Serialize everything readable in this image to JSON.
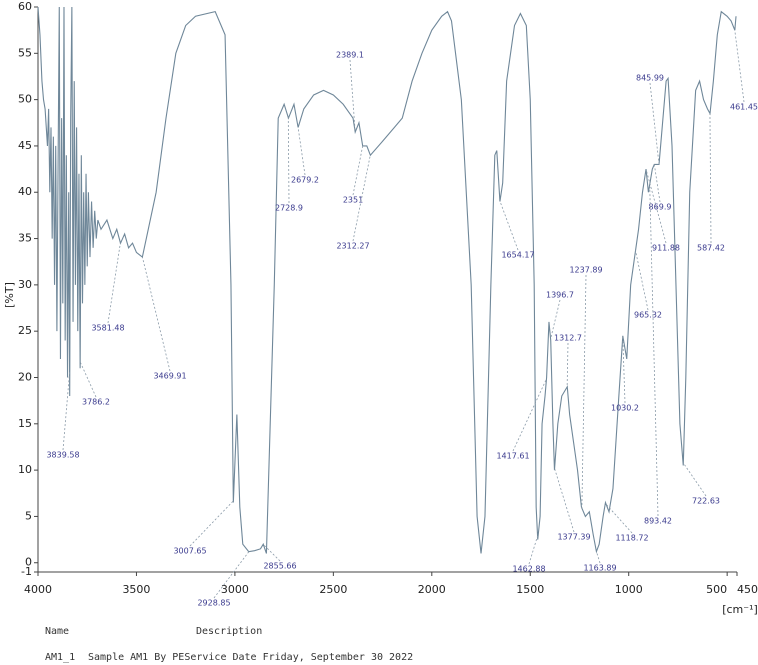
{
  "chart_data": {
    "type": "line",
    "color": "#6f8799",
    "y_label": "[%T]",
    "x_label": "[cm⁻¹]",
    "xlim": [
      4000,
      450
    ],
    "ylim": [
      -1,
      60
    ],
    "xticks": [
      4000,
      3500,
      3000,
      2500,
      2000,
      1500,
      1000,
      500,
      450
    ],
    "yticks": [
      -1,
      0,
      5,
      10,
      15,
      20,
      25,
      30,
      35,
      40,
      45,
      50,
      55,
      60
    ],
    "x": [
      4000,
      3990,
      3980,
      3972,
      3964,
      3958,
      3952,
      3946,
      3940,
      3934,
      3928,
      3922,
      3916,
      3910,
      3904,
      3898,
      3892,
      3886,
      3880,
      3874,
      3868,
      3862,
      3856,
      3850,
      3844,
      3839,
      3834,
      3828,
      3822,
      3816,
      3810,
      3804,
      3798,
      3792,
      3786,
      3780,
      3774,
      3768,
      3762,
      3756,
      3750,
      3744,
      3736,
      3728,
      3720,
      3712,
      3704,
      3696,
      3680,
      3650,
      3620,
      3600,
      3581,
      3560,
      3540,
      3520,
      3500,
      3470,
      3400,
      3350,
      3300,
      3250,
      3200,
      3100,
      3050,
      3020,
      3008,
      2990,
      2975,
      2960,
      2930,
      2900,
      2870,
      2856,
      2840,
      2800,
      2780,
      2750,
      2728,
      2700,
      2679,
      2650,
      2600,
      2550,
      2500,
      2450,
      2400,
      2389,
      2370,
      2351,
      2330,
      2312,
      2250,
      2150,
      2100,
      2050,
      2000,
      1950,
      1920,
      1900,
      1850,
      1800,
      1770,
      1750,
      1730,
      1700,
      1680,
      1670,
      1654,
      1640,
      1620,
      1580,
      1550,
      1520,
      1500,
      1480,
      1470,
      1462,
      1450,
      1440,
      1425,
      1417,
      1405,
      1396,
      1385,
      1377,
      1360,
      1340,
      1312,
      1300,
      1280,
      1260,
      1240,
      1220,
      1200,
      1180,
      1164,
      1150,
      1130,
      1118,
      1100,
      1080,
      1050,
      1030,
      1010,
      990,
      970,
      950,
      930,
      912,
      900,
      880,
      870,
      846,
      830,
      810,
      800,
      780,
      760,
      740,
      723,
      710,
      690,
      660,
      640,
      620,
      600,
      587,
      570,
      550,
      530,
      500,
      480,
      461,
      455
    ],
    "values": [
      60,
      57,
      52,
      50,
      49,
      47,
      45,
      49,
      40,
      47,
      35,
      46,
      30,
      45,
      25,
      43,
      60,
      22,
      48,
      28,
      60,
      24,
      44,
      20,
      40,
      18,
      48,
      60,
      26,
      52,
      30,
      47,
      25,
      42,
      21,
      44,
      28,
      40,
      30,
      42,
      32,
      40,
      33,
      39,
      34,
      38,
      35,
      37,
      36,
      37,
      35,
      36,
      34.5,
      35.5,
      34,
      34.5,
      33.5,
      33,
      40,
      48,
      55,
      58,
      59,
      59.5,
      57,
      30,
      6.5,
      16,
      6,
      2,
      1.2,
      1.3,
      1.5,
      2,
      1,
      30,
      48,
      49.5,
      48,
      49.5,
      47,
      49,
      50.5,
      51,
      50.5,
      49.5,
      48,
      46.5,
      47.5,
      45,
      45,
      44,
      45.5,
      48,
      52,
      55,
      57.5,
      59,
      59.5,
      58.5,
      50,
      30,
      5,
      1,
      5,
      30,
      44,
      44.5,
      39,
      41,
      52,
      58,
      59.3,
      58,
      50,
      30,
      6,
      2.5,
      5,
      15,
      18,
      20,
      26,
      24,
      15,
      10,
      15,
      18,
      19,
      16,
      13,
      10,
      6,
      5,
      5.5,
      3,
      1.2,
      2,
      5,
      6.5,
      5.5,
      8,
      18,
      24.5,
      22,
      30,
      33,
      36,
      40,
      42.5,
      40,
      42.5,
      43,
      43,
      47,
      52,
      52.3,
      45,
      30,
      15,
      10.5,
      20,
      40,
      51,
      52,
      50,
      49,
      48.5,
      52,
      57,
      59.5,
      59,
      58.5,
      57.5,
      59
    ],
    "peak_labels": [
      3839.58,
      3786.2,
      3581.48,
      3469.91,
      3007.65,
      2928.85,
      2855.66,
      2728.9,
      2679.2,
      2389.1,
      2351,
      2312.27,
      1654.17,
      1462.88,
      1417.61,
      1396.7,
      1377.39,
      1312.7,
      1237.89,
      1163.89,
      1118.72,
      1030.2,
      965.32,
      911.88,
      869.9,
      845.99,
      893.42,
      722.63,
      587.42,
      461.45
    ]
  },
  "footer": {
    "headers": [
      "Name",
      "Description"
    ],
    "row": [
      "AM1_1",
      "Sample AM1 By PEService Date Friday, September 30 2022"
    ]
  }
}
